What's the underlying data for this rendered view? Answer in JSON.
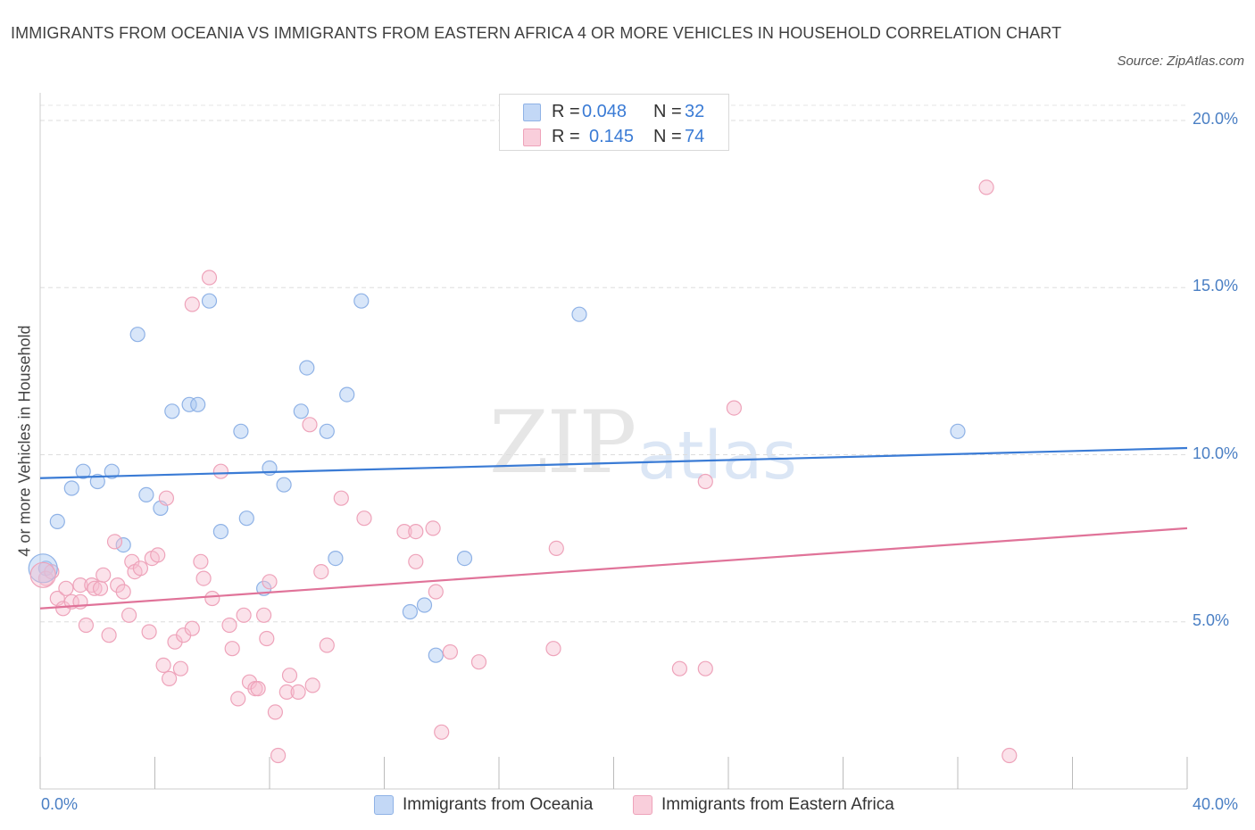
{
  "title": "IMMIGRANTS FROM OCEANIA VS IMMIGRANTS FROM EASTERN AFRICA 4 OR MORE VEHICLES IN HOUSEHOLD CORRELATION CHART",
  "source": "Source: ZipAtlas.com",
  "watermark": {
    "zip": "ZIP",
    "atlas": "atlas"
  },
  "stats": [
    {
      "r_label": "R =",
      "r_value": "0.048",
      "n_label": "N =",
      "n_value": "32",
      "color": "#a9c7f2"
    },
    {
      "r_label": "R =",
      "r_value": "0.145",
      "n_label": "N =",
      "n_value": "74",
      "color": "#f7bfd0"
    }
  ],
  "legend": [
    {
      "label": "Immigrants from Oceania",
      "color": "#a9c7f2"
    },
    {
      "label": "Immigrants from Eastern Africa",
      "color": "#f7bfd0"
    }
  ],
  "chart_data": {
    "type": "scatter",
    "title": "IMMIGRANTS FROM OCEANIA VS IMMIGRANTS FROM EASTERN AFRICA 4 OR MORE VEHICLES IN HOUSEHOLD CORRELATION CHART",
    "xlabel": "",
    "ylabel": "4 or more Vehicles in Household",
    "xlim": [
      0,
      40
    ],
    "ylim": [
      0,
      20
    ],
    "x_tick_labels": [
      "0.0%",
      "40.0%"
    ],
    "y_ticks": [
      5,
      10,
      15,
      20
    ],
    "y_tick_labels": [
      "5.0%",
      "10.0%",
      "15.0%",
      "20.0%"
    ],
    "grid": true,
    "legend_position": "bottom",
    "series": [
      {
        "name": "Immigrants from Oceania",
        "color": "#a9c7f2",
        "line_color": "#3a7bd5",
        "trend": [
          [
            0,
            9.3
          ],
          [
            40,
            10.2
          ]
        ],
        "points": [
          [
            0.2,
            6.6
          ],
          [
            0.6,
            8.0
          ],
          [
            1.1,
            9.0
          ],
          [
            1.5,
            9.5
          ],
          [
            2.0,
            9.2
          ],
          [
            2.5,
            9.5
          ],
          [
            2.9,
            7.3
          ],
          [
            3.4,
            13.6
          ],
          [
            3.7,
            8.8
          ],
          [
            4.2,
            8.4
          ],
          [
            4.6,
            11.3
          ],
          [
            5.2,
            11.5
          ],
          [
            5.5,
            11.5
          ],
          [
            5.9,
            14.6
          ],
          [
            6.3,
            7.7
          ],
          [
            7.0,
            10.7
          ],
          [
            7.2,
            8.1
          ],
          [
            7.8,
            6.0
          ],
          [
            8.0,
            9.6
          ],
          [
            8.5,
            9.1
          ],
          [
            9.1,
            11.3
          ],
          [
            9.3,
            12.6
          ],
          [
            10.0,
            10.7
          ],
          [
            10.3,
            6.9
          ],
          [
            10.7,
            11.8
          ],
          [
            11.2,
            14.6
          ],
          [
            12.9,
            5.3
          ],
          [
            13.4,
            5.5
          ],
          [
            13.8,
            4.0
          ],
          [
            14.8,
            6.9
          ],
          [
            18.8,
            14.2
          ],
          [
            32.0,
            10.7
          ]
        ]
      },
      {
        "name": "Immigrants from Eastern Africa",
        "color": "#f7bfd0",
        "line_color": "#e07399",
        "trend": [
          [
            0,
            5.4
          ],
          [
            40,
            7.8
          ]
        ],
        "points": [
          [
            0.2,
            6.3
          ],
          [
            0.4,
            6.5
          ],
          [
            0.6,
            5.7
          ],
          [
            0.8,
            5.4
          ],
          [
            0.9,
            6.0
          ],
          [
            1.1,
            5.6
          ],
          [
            1.4,
            5.6
          ],
          [
            1.4,
            6.1
          ],
          [
            1.6,
            4.9
          ],
          [
            1.8,
            6.1
          ],
          [
            1.9,
            6.0
          ],
          [
            2.1,
            6.0
          ],
          [
            2.2,
            6.4
          ],
          [
            2.4,
            4.6
          ],
          [
            2.6,
            7.4
          ],
          [
            2.7,
            6.1
          ],
          [
            2.9,
            5.9
          ],
          [
            3.1,
            5.2
          ],
          [
            3.2,
            6.8
          ],
          [
            3.3,
            6.5
          ],
          [
            3.5,
            6.6
          ],
          [
            3.8,
            4.7
          ],
          [
            3.9,
            6.9
          ],
          [
            4.1,
            7.0
          ],
          [
            4.3,
            3.7
          ],
          [
            4.4,
            8.7
          ],
          [
            4.5,
            3.3
          ],
          [
            4.7,
            4.4
          ],
          [
            4.9,
            3.6
          ],
          [
            5.0,
            4.6
          ],
          [
            5.3,
            4.8
          ],
          [
            5.6,
            6.8
          ],
          [
            5.7,
            6.3
          ],
          [
            5.9,
            15.3
          ],
          [
            6.0,
            5.7
          ],
          [
            5.3,
            14.5
          ],
          [
            6.3,
            9.5
          ],
          [
            6.6,
            4.9
          ],
          [
            6.7,
            4.2
          ],
          [
            6.9,
            2.7
          ],
          [
            7.1,
            5.2
          ],
          [
            7.3,
            3.2
          ],
          [
            7.5,
            3.0
          ],
          [
            7.6,
            3.0
          ],
          [
            7.8,
            5.2
          ],
          [
            7.9,
            4.5
          ],
          [
            8.0,
            6.2
          ],
          [
            8.2,
            2.3
          ],
          [
            8.3,
            1.0
          ],
          [
            8.6,
            2.9
          ],
          [
            8.7,
            3.4
          ],
          [
            9.0,
            2.9
          ],
          [
            9.4,
            10.9
          ],
          [
            9.5,
            3.1
          ],
          [
            9.8,
            6.5
          ],
          [
            10.0,
            4.3
          ],
          [
            10.5,
            8.7
          ],
          [
            11.3,
            8.1
          ],
          [
            12.7,
            7.7
          ],
          [
            13.1,
            7.7
          ],
          [
            13.1,
            6.8
          ],
          [
            13.7,
            7.8
          ],
          [
            13.8,
            5.9
          ],
          [
            14.0,
            1.7
          ],
          [
            15.3,
            3.8
          ],
          [
            17.9,
            4.2
          ],
          [
            18.0,
            7.2
          ],
          [
            22.3,
            3.6
          ],
          [
            23.2,
            3.6
          ],
          [
            23.2,
            9.2
          ],
          [
            24.2,
            11.4
          ],
          [
            33.0,
            18.0
          ],
          [
            33.8,
            1.0
          ],
          [
            14.3,
            4.1
          ]
        ]
      }
    ]
  }
}
